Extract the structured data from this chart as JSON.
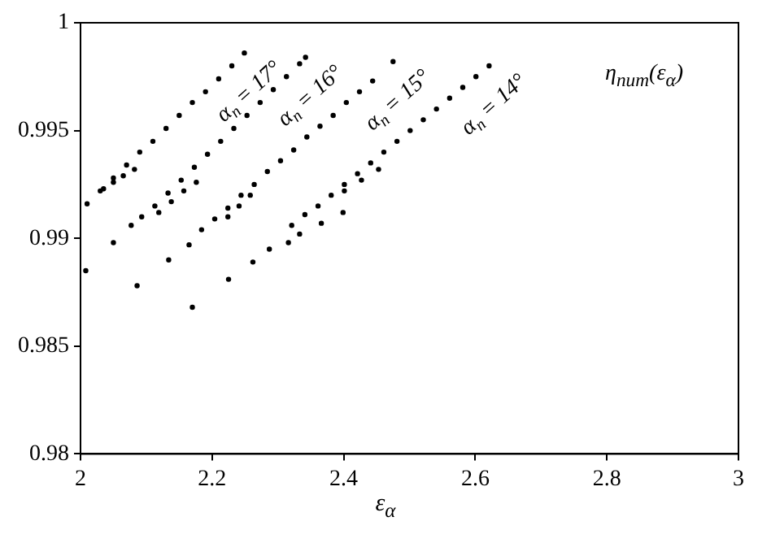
{
  "chart_data": {
    "type": "scatter",
    "xlabel": "ε$_{α}$",
    "xlim": [
      2,
      3
    ],
    "xticks": [
      2,
      2.2,
      2.4,
      2.6,
      2.8,
      3
    ],
    "ylim": [
      0.98,
      1
    ],
    "yticks": [
      0.98,
      0.985,
      0.99,
      0.995,
      1
    ],
    "grid": false,
    "legend": false,
    "marker": "circle",
    "series": [
      {
        "color": "#000000",
        "x": [
          2.008,
          2.05,
          2.01,
          2.03,
          2.05,
          2.07,
          2.09,
          2.11,
          2.13,
          2.15,
          2.17,
          2.19,
          2.21,
          2.23,
          2.249,
          2.035,
          2.05,
          2.065,
          2.082
        ],
        "values": [
          0.9885,
          0.9898,
          0.9916,
          0.9922,
          0.9928,
          0.9934,
          0.994,
          0.9945,
          0.9951,
          0.9957,
          0.9963,
          0.9968,
          0.9974,
          0.998,
          0.9986,
          0.9923,
          0.9926,
          0.9929,
          0.9932
        ]
      },
      {
        "color": "#000000",
        "x": [
          2.077,
          2.086,
          2.093,
          2.113,
          2.133,
          2.153,
          2.173,
          2.193,
          2.213,
          2.233,
          2.253,
          2.273,
          2.293,
          2.313,
          2.333,
          2.342,
          2.119,
          2.138,
          2.157,
          2.176
        ],
        "values": [
          0.9906,
          0.9878,
          0.991,
          0.9915,
          0.9921,
          0.9927,
          0.9933,
          0.9939,
          0.9945,
          0.9951,
          0.9957,
          0.9963,
          0.9969,
          0.9975,
          0.9981,
          0.9984,
          0.9912,
          0.9917,
          0.9922,
          0.9926
        ]
      },
      {
        "color": "#000000",
        "x": [
          2.134,
          2.165,
          2.17,
          2.184,
          2.204,
          2.224,
          2.244,
          2.264,
          2.284,
          2.304,
          2.324,
          2.344,
          2.364,
          2.384,
          2.404,
          2.424,
          2.444,
          2.475,
          2.224,
          2.241,
          2.258
        ],
        "values": [
          0.989,
          0.9897,
          0.9868,
          0.9904,
          0.9909,
          0.9914,
          0.992,
          0.9925,
          0.9931,
          0.9936,
          0.9941,
          0.9947,
          0.9952,
          0.9957,
          0.9963,
          0.9968,
          0.9973,
          0.9982,
          0.991,
          0.9915,
          0.992
        ]
      },
      {
        "color": "#000000",
        "x": [
          2.225,
          2.262,
          2.287,
          2.316,
          2.321,
          2.341,
          2.361,
          2.381,
          2.401,
          2.421,
          2.441,
          2.461,
          2.481,
          2.501,
          2.521,
          2.541,
          2.561,
          2.581,
          2.601,
          2.621,
          2.333,
          2.366,
          2.399,
          2.401,
          2.427,
          2.453
        ],
        "values": [
          0.9881,
          0.9889,
          0.9895,
          0.9898,
          0.9906,
          0.9911,
          0.9915,
          0.992,
          0.9925,
          0.993,
          0.9935,
          0.994,
          0.9945,
          0.995,
          0.9955,
          0.996,
          0.9965,
          0.997,
          0.9975,
          0.998,
          0.9902,
          0.9907,
          0.9912,
          0.9922,
          0.9927,
          0.9932
        ]
      }
    ],
    "annotations": [
      {
        "text": "α$_{n}$ = 17°",
        "x": 2.249,
        "y": 0.9986
      },
      {
        "text": "α$_{n}$ = 16°",
        "x": 2.342,
        "y": 0.9984
      },
      {
        "text": "α$_{n}$ = 15°",
        "x": 2.475,
        "y": 0.9982
      },
      {
        "text": "α$_{n}$ = 14°",
        "x": 2.621,
        "y": 0.998
      },
      "η$_{num}$(ε$_{α}$)"
    ]
  }
}
